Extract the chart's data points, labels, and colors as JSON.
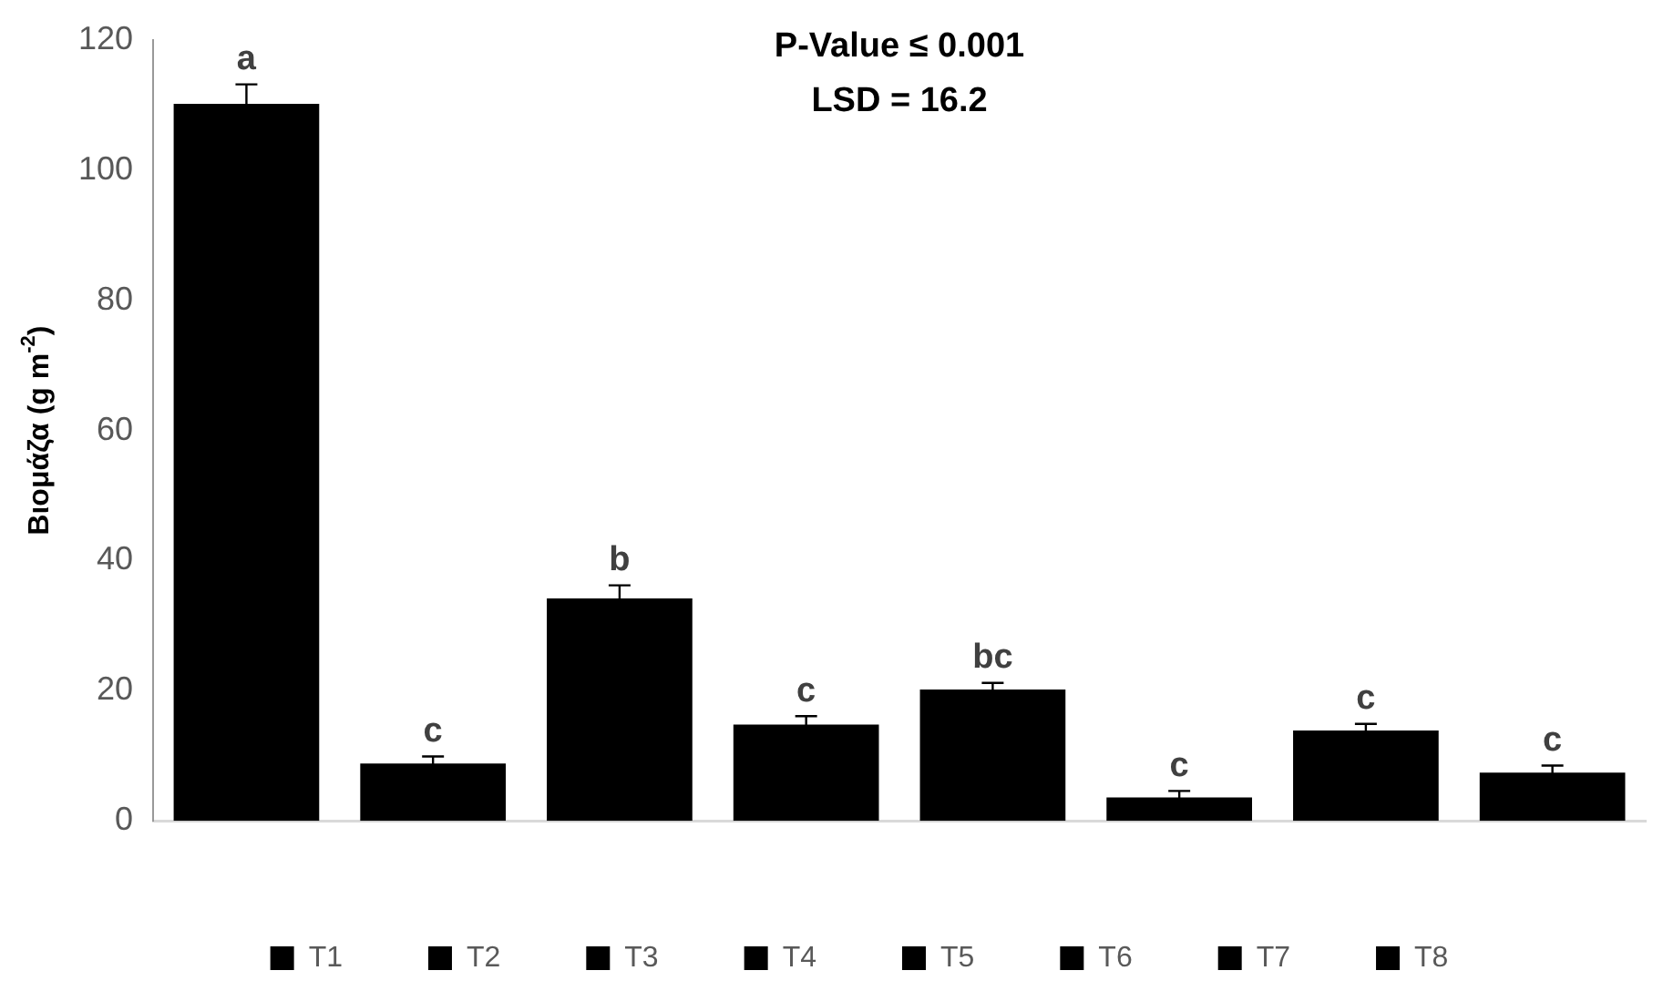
{
  "chart_data": {
    "type": "bar",
    "title": "P-Value ≤ 0.001",
    "subtitle": "LSD = 16.2",
    "ylabel": "Βιομάζα (g m$^{-2}$)",
    "categories": [
      null,
      null,
      null,
      null,
      null,
      null,
      null,
      null
    ],
    "series": [
      {
        "name": "T1",
        "color": "#000000",
        "values": [
          110.2,
          null,
          null,
          null,
          null,
          null,
          null,
          null
        ],
        "errors": [
          3,
          null,
          null,
          null,
          null,
          null,
          null,
          null
        ],
        "value_labels": [
          "a",
          null,
          null,
          null,
          null,
          null,
          null,
          null
        ]
      },
      {
        "name": "T2",
        "color": "#000000",
        "values": [
          null,
          8.8,
          null,
          null,
          null,
          null,
          null,
          null
        ],
        "errors": [
          null,
          1.1,
          null,
          null,
          null,
          null,
          null,
          null
        ],
        "value_labels": [
          null,
          "c",
          null,
          null,
          null,
          null,
          null,
          null
        ]
      },
      {
        "name": "T3",
        "color": "#000000",
        "values": [
          null,
          null,
          34.2,
          null,
          null,
          null,
          null,
          null
        ],
        "errors": [
          null,
          null,
          2,
          null,
          null,
          null,
          null,
          null
        ],
        "value_labels": [
          null,
          null,
          "b",
          null,
          null,
          null,
          null,
          null
        ]
      },
      {
        "name": "T4",
        "color": "#000000",
        "values": [
          null,
          null,
          null,
          14.8,
          null,
          null,
          null,
          null
        ],
        "errors": [
          null,
          null,
          null,
          1.3,
          null,
          null,
          null,
          null
        ],
        "value_labels": [
          null,
          null,
          null,
          "c",
          null,
          null,
          null,
          null
        ]
      },
      {
        "name": "T5",
        "color": "#000000",
        "values": [
          null,
          null,
          null,
          null,
          20.2,
          null,
          null,
          null
        ],
        "errors": [
          null,
          null,
          null,
          null,
          1,
          null,
          null,
          null
        ],
        "value_labels": [
          null,
          null,
          null,
          null,
          "bc",
          null,
          null,
          null
        ]
      },
      {
        "name": "T6",
        "color": "#000000",
        "values": [
          null,
          null,
          null,
          null,
          null,
          3.6,
          null,
          null
        ],
        "errors": [
          null,
          null,
          null,
          null,
          null,
          1,
          null,
          null
        ],
        "value_labels": [
          null,
          null,
          null,
          null,
          null,
          "c",
          null,
          null
        ]
      },
      {
        "name": "T7",
        "color": "#000000",
        "values": [
          null,
          null,
          null,
          null,
          null,
          null,
          13.9,
          null
        ],
        "errors": [
          null,
          null,
          null,
          null,
          null,
          null,
          1,
          null
        ],
        "value_labels": [
          null,
          null,
          null,
          null,
          null,
          null,
          "c",
          null
        ]
      },
      {
        "name": "T8",
        "color": "#000000",
        "values": [
          null,
          null,
          null,
          null,
          null,
          null,
          null,
          7.4
        ],
        "errors": [
          null,
          null,
          null,
          null,
          null,
          null,
          null,
          1.1
        ],
        "value_labels": [
          null,
          null,
          null,
          null,
          null,
          null,
          null,
          "c"
        ]
      }
    ],
    "ylim": [
      0,
      120
    ],
    "yticks": [
      0,
      20,
      40,
      60,
      80,
      100,
      120
    ],
    "grid": false,
    "legend": "bottom"
  }
}
